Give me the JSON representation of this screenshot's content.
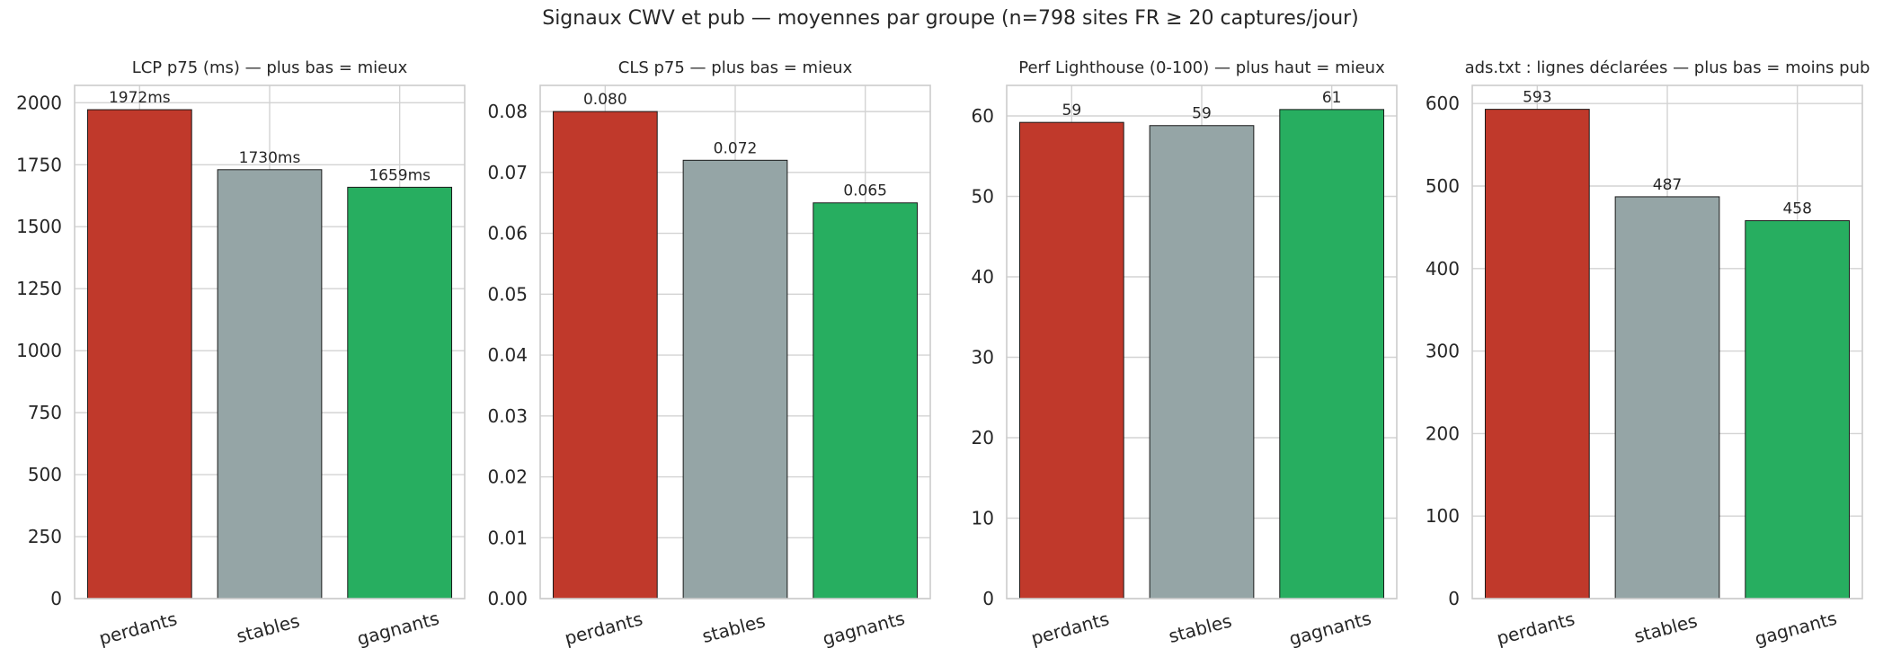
{
  "suptitle": "Signaux CWV et pub — moyennes par groupe (n=798 sites FR ≥ 20 captures/jour)",
  "colors": {
    "perdants": "#c0392b",
    "stables": "#95a5a6",
    "gagnants": "#27ae60"
  },
  "chart_data": [
    {
      "type": "bar",
      "title": "LCP p75 (ms) — plus bas = mieux",
      "categories": [
        "perdants",
        "stables",
        "gagnants"
      ],
      "values": [
        1972,
        1730,
        1659
      ],
      "value_labels": [
        "1972ms",
        "1730ms",
        "1659ms"
      ],
      "ylim": [
        0,
        2070
      ],
      "yticks": [
        0,
        250,
        500,
        750,
        1000,
        1250,
        1500,
        1750,
        2000
      ],
      "ytick_labels": [
        "0",
        "250",
        "500",
        "750",
        "1000",
        "1250",
        "1500",
        "1750",
        "2000"
      ],
      "grid": true
    },
    {
      "type": "bar",
      "title": "CLS p75 — plus bas = mieux",
      "categories": [
        "perdants",
        "stables",
        "gagnants"
      ],
      "values": [
        0.08,
        0.072,
        0.065
      ],
      "value_labels": [
        "0.080",
        "0.072",
        "0.065"
      ],
      "ylim": [
        0,
        0.0843
      ],
      "yticks": [
        0,
        0.01,
        0.02,
        0.03,
        0.04,
        0.05,
        0.06,
        0.07,
        0.08
      ],
      "ytick_labels": [
        "0.00",
        "0.01",
        "0.02",
        "0.03",
        "0.04",
        "0.05",
        "0.06",
        "0.07",
        "0.08"
      ],
      "grid": true
    },
    {
      "type": "bar",
      "title": "Perf Lighthouse (0-100) — plus haut = mieux",
      "categories": [
        "perdants",
        "stables",
        "gagnants"
      ],
      "values": [
        59.2,
        58.8,
        60.8
      ],
      "value_labels": [
        "59",
        "59",
        "61"
      ],
      "ylim": [
        0,
        63.8
      ],
      "yticks": [
        0,
        10,
        20,
        30,
        40,
        50,
        60
      ],
      "ytick_labels": [
        "0",
        "10",
        "20",
        "30",
        "40",
        "50",
        "60"
      ],
      "grid": true
    },
    {
      "type": "bar",
      "title": "ads.txt : lignes déclarées — plus bas = moins pub",
      "categories": [
        "perdants",
        "stables",
        "gagnants"
      ],
      "values": [
        593,
        487,
        458
      ],
      "value_labels": [
        "593",
        "487",
        "458"
      ],
      "ylim": [
        0,
        622
      ],
      "yticks": [
        0,
        100,
        200,
        300,
        400,
        500,
        600
      ],
      "ytick_labels": [
        "0",
        "100",
        "200",
        "300",
        "400",
        "500",
        "600"
      ],
      "grid": true
    }
  ]
}
